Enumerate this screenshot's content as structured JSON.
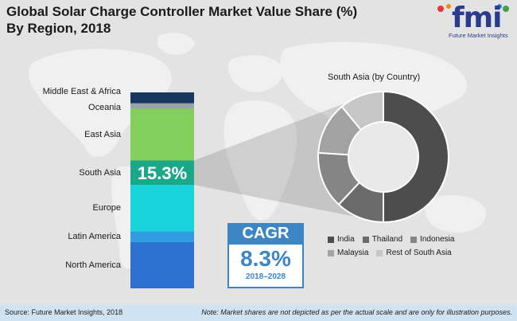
{
  "header": {
    "title_line1": "Global Solar Charge Controller Market Value Share (%)",
    "title_line2": "By Region, 2018"
  },
  "logo": {
    "letters": "fmi",
    "subtitle": "Future Market Insights",
    "brand_color": "#2a3b8f"
  },
  "chart_data": [
    {
      "type": "bar",
      "subtype": "stacked-100",
      "title": "",
      "categories": [
        "North America",
        "Latin America",
        "Europe",
        "South Asia",
        "East Asia",
        "Oceania",
        "Middle East & Africa"
      ],
      "values": [
        17,
        4,
        17,
        9,
        19,
        2,
        4
      ],
      "colors": [
        "#2d72d0",
        "#2d9de0",
        "#17d4da",
        "#1aa889",
        "#82cf5d",
        "#9aa3a8",
        "#17385e"
      ],
      "highlight": {
        "category": "South Asia",
        "label": "15.3%"
      }
    },
    {
      "type": "pie",
      "subtype": "donut",
      "title": "South Asia (by Country)",
      "categories": [
        "India",
        "Thailand",
        "Indonesia",
        "Malaysia",
        "Rest of South Asia"
      ],
      "values": [
        50,
        12,
        14,
        13,
        11
      ],
      "colors": [
        "#4d4d4d",
        "#6b6b6b",
        "#858585",
        "#a2a2a2",
        "#c6c6c6"
      ]
    }
  ],
  "cagr": {
    "label": "CAGR",
    "value": "8.3%",
    "period": "2018–2028",
    "color": "#3d86c6"
  },
  "footer": {
    "source": "Source: Future Market Insights, 2018",
    "note": "Note: Market shares are not depicted as per the actual scale and are only for illustration purposes."
  }
}
